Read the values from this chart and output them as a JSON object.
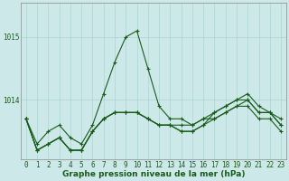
{
  "title": "Graphe pression niveau de la mer (hPa)",
  "background_color": "#cce8e8",
  "grid_color": "#aad4d4",
  "line_color": "#1a5c1a",
  "hours": [
    0,
    1,
    2,
    3,
    4,
    5,
    6,
    7,
    8,
    9,
    10,
    11,
    12,
    13,
    14,
    15,
    16,
    17,
    18,
    19,
    20,
    21,
    22,
    23
  ],
  "series": [
    [
      1013.7,
      1013.3,
      1013.5,
      1013.6,
      1013.4,
      1013.3,
      1013.6,
      1014.1,
      1014.6,
      1015.0,
      1015.1,
      1014.5,
      1013.9,
      1013.7,
      1013.7,
      1013.6,
      1013.7,
      1013.8,
      1013.9,
      1014.0,
      1014.0,
      1013.8,
      1013.8,
      1013.6
    ],
    [
      1013.7,
      1013.2,
      1013.3,
      1013.4,
      1013.2,
      1013.2,
      1013.5,
      1013.7,
      1013.8,
      1013.8,
      1013.8,
      1013.7,
      1013.6,
      1013.6,
      1013.6,
      1013.6,
      1013.7,
      1013.7,
      1013.8,
      1013.9,
      1014.0,
      1013.8,
      1013.8,
      1013.6
    ],
    [
      1013.7,
      1013.2,
      1013.3,
      1013.4,
      1013.2,
      1013.2,
      1013.5,
      1013.7,
      1013.8,
      1013.8,
      1013.8,
      1013.7,
      1013.6,
      1013.6,
      1013.5,
      1013.5,
      1013.6,
      1013.8,
      1013.9,
      1014.0,
      1014.1,
      1013.9,
      1013.8,
      1013.7
    ],
    [
      1013.7,
      1013.2,
      1013.3,
      1013.4,
      1013.2,
      1013.2,
      1013.5,
      1013.7,
      1013.8,
      1013.8,
      1013.8,
      1013.7,
      1013.6,
      1013.6,
      1013.5,
      1013.5,
      1013.6,
      1013.7,
      1013.8,
      1013.9,
      1013.9,
      1013.7,
      1013.7,
      1013.5
    ]
  ],
  "ylim_min": 1013.05,
  "ylim_max": 1015.55,
  "ytick_positions": [
    1014.0,
    1015.0
  ],
  "ytick_labels": [
    "1014",
    "1015"
  ],
  "title_fontsize": 6.5,
  "tick_fontsize": 5.5
}
